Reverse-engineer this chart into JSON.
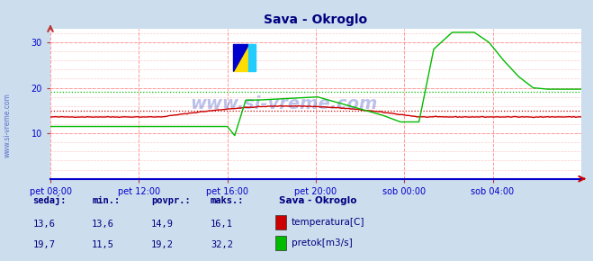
{
  "title": "Sava - Okroglo",
  "title_color": "#000080",
  "bg_color": "#ccdded",
  "plot_bg_color": "#ffffff",
  "grid_color_major": "#ff9999",
  "grid_color_minor": "#ffcccc",
  "x_min": 0,
  "x_max": 288,
  "y_min": 0,
  "y_max": 33,
  "yticks": [
    10,
    20,
    30
  ],
  "xtick_positions": [
    0,
    48,
    96,
    144,
    192,
    240
  ],
  "xtick_labels": [
    "pet 08:00",
    "pet 12:00",
    "pet 16:00",
    "pet 20:00",
    "sob 00:00",
    "sob 04:00"
  ],
  "watermark": "www.si-vreme.com",
  "watermark_color": "#2233bb",
  "watermark_alpha": 0.3,
  "sidebar_text": "www.si-vreme.com",
  "sidebar_color": "#2233bb",
  "temp_color": "#cc0000",
  "flow_color": "#00bb00",
  "temp_avg_line": 14.9,
  "flow_avg_line": 19.2,
  "legend_title": "Sava - Okroglo",
  "legend_entries": [
    "temperatura[C]",
    "pretok[m3/s]"
  ],
  "legend_colors": [
    "#cc0000",
    "#00bb00"
  ],
  "stats_headers": [
    "sedaj:",
    "min.:",
    "povpr.:",
    "maks.:"
  ],
  "stats_temp": [
    "13,6",
    "13,6",
    "14,9",
    "16,1"
  ],
  "stats_flow": [
    "19,7",
    "11,5",
    "19,2",
    "32,2"
  ],
  "stats_color": "#000080",
  "axis_color": "#0000cc",
  "tick_color": "#bb3333",
  "arrow_color": "#cc0000"
}
